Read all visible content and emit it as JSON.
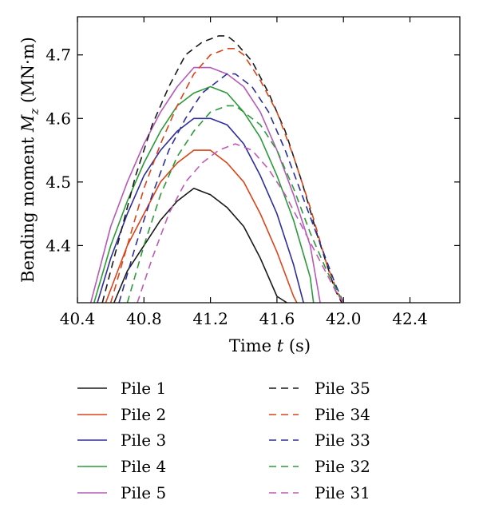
{
  "chart_data": {
    "type": "line",
    "title": "",
    "xlabel": "Time t (s)",
    "ylabel": "Bending moment M_z (MN·m)",
    "xlabel_parts": {
      "prefix": "Time ",
      "var": "t",
      "suffix": " (s)"
    },
    "ylabel_parts": {
      "prefix": "Bending moment ",
      "var": "M",
      "sub": "z",
      "suffix": " (MN·m)"
    },
    "xlim": [
      40.4,
      42.7
    ],
    "ylim": [
      4.31,
      4.76
    ],
    "xticks": [
      40.4,
      40.8,
      41.2,
      41.6,
      42.0,
      42.4
    ],
    "xtick_labels": [
      "40.4",
      "40.8",
      "41.2",
      "41.6",
      "42.0",
      "42.4"
    ],
    "yticks": [
      4.4,
      4.5,
      4.6,
      4.7
    ],
    "ytick_labels": [
      "4.4",
      "4.5",
      "4.6",
      "4.7"
    ],
    "grid": false,
    "legend_position": "bottom",
    "series": [
      {
        "name": "Pile 1",
        "color": "#1a1a1a",
        "dash": "solid",
        "x": [
          40.62,
          40.7,
          40.8,
          40.9,
          41.0,
          41.1,
          41.2,
          41.3,
          41.4,
          41.5,
          41.6,
          41.66
        ],
        "y": [
          4.31,
          4.36,
          4.4,
          4.44,
          4.47,
          4.49,
          4.48,
          4.46,
          4.43,
          4.38,
          4.32,
          4.31
        ]
      },
      {
        "name": "Pile 2",
        "color": "#d9441a",
        "dash": "solid",
        "x": [
          40.57,
          40.7,
          40.8,
          40.9,
          41.0,
          41.1,
          41.2,
          41.3,
          41.4,
          41.5,
          41.6,
          41.7,
          41.72
        ],
        "y": [
          4.31,
          4.4,
          4.45,
          4.5,
          4.53,
          4.55,
          4.55,
          4.53,
          4.5,
          4.45,
          4.39,
          4.32,
          4.31
        ]
      },
      {
        "name": "Pile 3",
        "color": "#2e2e9a",
        "dash": "solid",
        "x": [
          40.52,
          40.6,
          40.7,
          40.8,
          40.9,
          41.0,
          41.1,
          41.2,
          41.3,
          41.4,
          41.5,
          41.6,
          41.7,
          41.76
        ],
        "y": [
          4.31,
          4.38,
          4.45,
          4.51,
          4.55,
          4.58,
          4.6,
          4.6,
          4.59,
          4.56,
          4.51,
          4.45,
          4.37,
          4.31
        ]
      },
      {
        "name": "Pile 4",
        "color": "#2c9a3a",
        "dash": "solid",
        "x": [
          40.5,
          40.6,
          40.7,
          40.8,
          40.9,
          41.0,
          41.1,
          41.2,
          41.3,
          41.4,
          41.5,
          41.6,
          41.7,
          41.8,
          41.82
        ],
        "y": [
          4.31,
          4.4,
          4.47,
          4.53,
          4.58,
          4.62,
          4.64,
          4.65,
          4.64,
          4.61,
          4.57,
          4.51,
          4.44,
          4.35,
          4.31
        ]
      },
      {
        "name": "Pile 5",
        "color": "#b55ab8",
        "dash": "solid",
        "x": [
          40.48,
          40.6,
          40.7,
          40.8,
          40.9,
          41.0,
          41.1,
          41.2,
          41.3,
          41.4,
          41.5,
          41.6,
          41.7,
          41.8,
          41.86
        ],
        "y": [
          4.31,
          4.43,
          4.5,
          4.56,
          4.61,
          4.65,
          4.68,
          4.68,
          4.67,
          4.65,
          4.61,
          4.55,
          4.48,
          4.4,
          4.31
        ]
      },
      {
        "name": "Pile 35",
        "color": "#1a1a1a",
        "dash": "dashed",
        "x": [
          40.55,
          40.65,
          40.75,
          40.85,
          40.95,
          41.05,
          41.15,
          41.25,
          41.3,
          41.35,
          41.45,
          41.55,
          41.65,
          41.75,
          41.85,
          41.95,
          41.99
        ],
        "y": [
          4.31,
          4.41,
          4.51,
          4.59,
          4.65,
          4.7,
          4.72,
          4.73,
          4.73,
          4.72,
          4.69,
          4.64,
          4.58,
          4.5,
          4.41,
          4.33,
          4.31
        ]
      },
      {
        "name": "Pile 34",
        "color": "#d9441a",
        "dash": "dashed",
        "x": [
          40.6,
          40.7,
          40.8,
          40.9,
          41.0,
          41.1,
          41.2,
          41.3,
          41.35,
          41.4,
          41.5,
          41.6,
          41.7,
          41.8,
          41.9,
          41.99
        ],
        "y": [
          4.31,
          4.4,
          4.49,
          4.56,
          4.62,
          4.67,
          4.7,
          4.71,
          4.71,
          4.7,
          4.66,
          4.61,
          4.54,
          4.46,
          4.37,
          4.31
        ]
      },
      {
        "name": "Pile 33",
        "color": "#2e2e9a",
        "dash": "dashed",
        "x": [
          40.65,
          40.75,
          40.85,
          40.95,
          41.05,
          41.15,
          41.25,
          41.3,
          41.35,
          41.45,
          41.55,
          41.65,
          41.75,
          41.85,
          41.95,
          42.0
        ],
        "y": [
          4.31,
          4.4,
          4.48,
          4.55,
          4.6,
          4.64,
          4.66,
          4.67,
          4.67,
          4.65,
          4.61,
          4.55,
          4.48,
          4.41,
          4.34,
          4.31
        ]
      },
      {
        "name": "Pile 32",
        "color": "#2c9a3a",
        "dash": "dashed",
        "x": [
          40.7,
          40.8,
          40.9,
          41.0,
          41.1,
          41.2,
          41.3,
          41.35,
          41.4,
          41.5,
          41.6,
          41.7,
          41.8,
          41.9,
          42.0
        ],
        "y": [
          4.31,
          4.4,
          4.48,
          4.54,
          4.58,
          4.61,
          4.62,
          4.62,
          4.61,
          4.59,
          4.55,
          4.49,
          4.42,
          4.36,
          4.31
        ]
      },
      {
        "name": "Pile 31",
        "color": "#c25ab8",
        "dash": "dashed",
        "x": [
          40.76,
          40.85,
          40.95,
          41.05,
          41.15,
          41.25,
          41.35,
          41.45,
          41.55,
          41.65,
          41.75,
          41.85,
          41.95,
          42.0
        ],
        "y": [
          4.31,
          4.38,
          4.45,
          4.5,
          4.53,
          4.55,
          4.56,
          4.55,
          4.52,
          4.48,
          4.43,
          4.38,
          4.33,
          4.31
        ]
      }
    ]
  }
}
